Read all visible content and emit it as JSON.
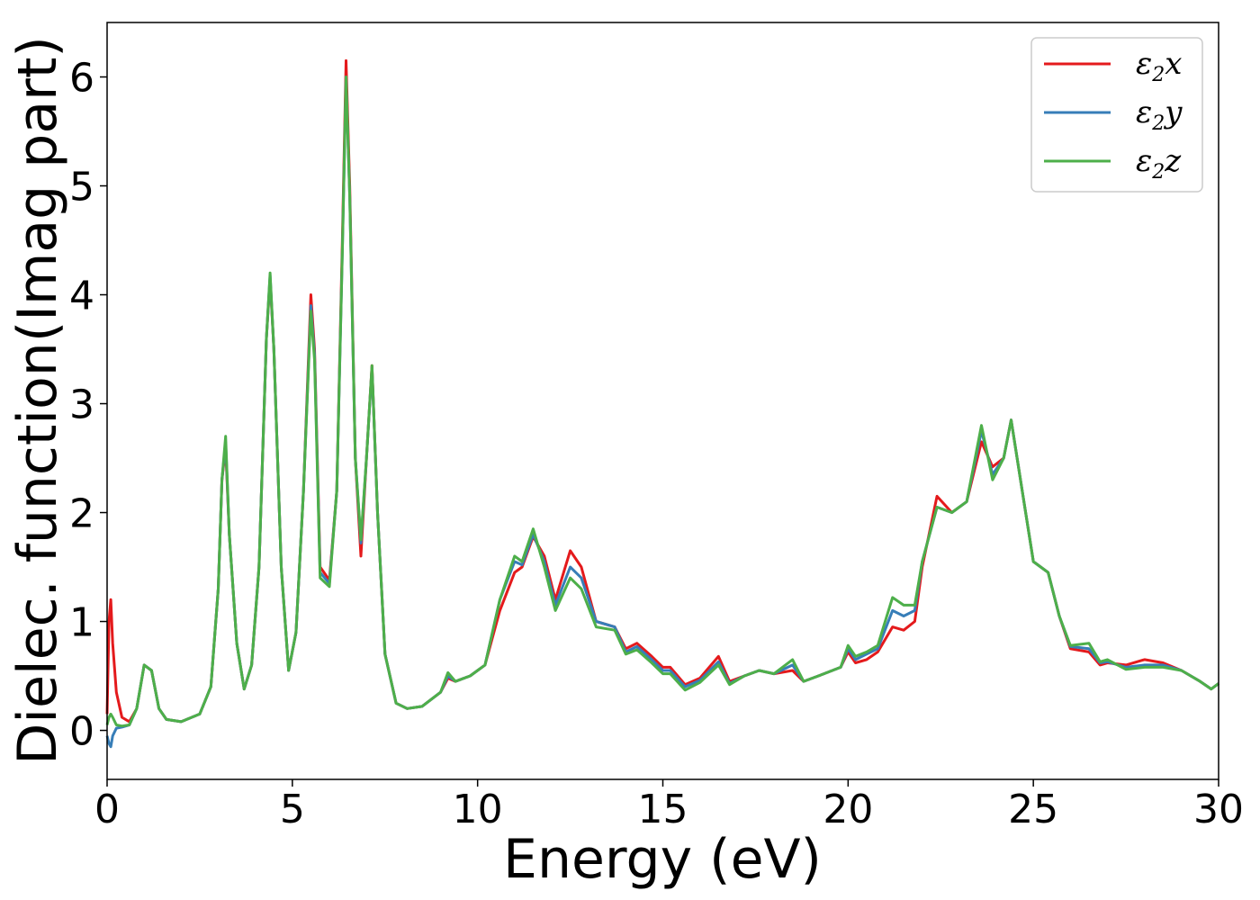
{
  "chart_data": {
    "type": "line",
    "title": "",
    "xlabel": "Energy (eV)",
    "ylabel": "Dielec. function(Imag part)",
    "xlim": [
      0,
      30
    ],
    "ylim": [
      -0.45,
      6.5
    ],
    "xticks": [
      0,
      5,
      10,
      15,
      20,
      25,
      30
    ],
    "xtick_labels": [
      "0",
      "5",
      "10",
      "15",
      "20",
      "25",
      "30"
    ],
    "yticks": [
      0,
      1,
      2,
      3,
      4,
      5,
      6
    ],
    "ytick_labels": [
      "0",
      "1",
      "2",
      "3",
      "4",
      "5",
      "6"
    ],
    "grid": false,
    "legend_position": "top-right",
    "colors": {
      "x": "#e41a1c",
      "y": "#377eb8",
      "z": "#4daf4a"
    },
    "series": [
      {
        "name": "ε2x",
        "legend_symbol": "ε",
        "legend_sub": "2",
        "legend_suffix": "x",
        "color": "#e41a1c",
        "x": [
          0,
          0.05,
          0.1,
          0.15,
          0.25,
          0.4,
          0.6,
          0.8,
          1.0,
          1.2,
          1.4,
          1.6,
          2.0,
          2.5,
          2.8,
          3.0,
          3.1,
          3.2,
          3.3,
          3.5,
          3.7,
          3.9,
          4.1,
          4.3,
          4.4,
          4.5,
          4.7,
          4.9,
          5.1,
          5.3,
          5.5,
          5.6,
          5.75,
          6.0,
          6.2,
          6.35,
          6.45,
          6.55,
          6.7,
          6.85,
          7.0,
          7.15,
          7.3,
          7.5,
          7.8,
          8.1,
          8.5,
          9.0,
          9.2,
          9.4,
          9.8,
          10.2,
          10.6,
          11.0,
          11.2,
          11.5,
          11.8,
          12.1,
          12.5,
          12.8,
          13.2,
          13.7,
          14.0,
          14.3,
          14.7,
          15.0,
          15.2,
          15.6,
          16.0,
          16.5,
          16.8,
          17.2,
          17.6,
          18.0,
          18.5,
          18.8,
          19.2,
          19.8,
          20.0,
          20.2,
          20.5,
          20.8,
          21.2,
          21.5,
          21.8,
          22.0,
          22.4,
          22.8,
          23.2,
          23.6,
          23.9,
          24.2,
          24.4,
          24.7,
          25.0,
          25.4,
          25.7,
          26.0,
          26.5,
          26.8,
          27.0,
          27.5,
          28.0,
          28.5,
          29.0,
          29.5,
          29.8,
          30.0
        ],
        "values": [
          0.15,
          1.0,
          1.2,
          0.8,
          0.35,
          0.12,
          0.08,
          0.2,
          0.6,
          0.55,
          0.2,
          0.1,
          0.08,
          0.15,
          0.4,
          1.3,
          2.3,
          2.6,
          1.8,
          0.8,
          0.38,
          0.6,
          1.5,
          3.6,
          4.15,
          3.5,
          1.5,
          0.55,
          0.9,
          2.2,
          4.0,
          3.5,
          1.5,
          1.38,
          2.2,
          4.5,
          6.15,
          5.0,
          2.5,
          1.6,
          2.5,
          3.35,
          2.0,
          0.7,
          0.25,
          0.2,
          0.22,
          0.35,
          0.48,
          0.45,
          0.5,
          0.6,
          1.1,
          1.45,
          1.5,
          1.78,
          1.6,
          1.2,
          1.65,
          1.5,
          1.0,
          0.95,
          0.75,
          0.8,
          0.68,
          0.58,
          0.58,
          0.42,
          0.48,
          0.68,
          0.45,
          0.5,
          0.55,
          0.52,
          0.55,
          0.45,
          0.5,
          0.58,
          0.72,
          0.62,
          0.65,
          0.72,
          0.95,
          0.92,
          1.0,
          1.5,
          2.15,
          2.0,
          2.1,
          2.65,
          2.42,
          2.5,
          2.85,
          2.2,
          1.55,
          1.45,
          1.05,
          0.75,
          0.72,
          0.6,
          0.62,
          0.6,
          0.65,
          0.62,
          0.55,
          0.45,
          0.38,
          0.43
        ]
      },
      {
        "name": "ε2y",
        "legend_symbol": "ε",
        "legend_sub": "2",
        "legend_suffix": "y",
        "color": "#377eb8",
        "x": [
          0,
          0.05,
          0.1,
          0.15,
          0.25,
          0.4,
          0.6,
          0.8,
          1.0,
          1.2,
          1.4,
          1.6,
          2.0,
          2.5,
          2.8,
          3.0,
          3.1,
          3.2,
          3.3,
          3.5,
          3.7,
          3.9,
          4.1,
          4.3,
          4.4,
          4.5,
          4.7,
          4.9,
          5.1,
          5.3,
          5.5,
          5.6,
          5.75,
          6.0,
          6.2,
          6.35,
          6.45,
          6.55,
          6.7,
          6.85,
          7.0,
          7.15,
          7.3,
          7.5,
          7.8,
          8.1,
          8.5,
          9.0,
          9.2,
          9.4,
          9.8,
          10.2,
          10.6,
          11.0,
          11.2,
          11.5,
          11.8,
          12.1,
          12.5,
          12.8,
          13.2,
          13.7,
          14.0,
          14.3,
          14.7,
          15.0,
          15.2,
          15.6,
          16.0,
          16.5,
          16.8,
          17.2,
          17.6,
          18.0,
          18.5,
          18.8,
          19.2,
          19.8,
          20.0,
          20.2,
          20.5,
          20.8,
          21.2,
          21.5,
          21.8,
          22.0,
          22.4,
          22.8,
          23.2,
          23.6,
          23.9,
          24.2,
          24.4,
          24.7,
          25.0,
          25.4,
          25.7,
          26.0,
          26.5,
          26.8,
          27.0,
          27.5,
          28.0,
          28.5,
          29.0,
          29.5,
          29.8,
          30.0
        ],
        "values": [
          -0.05,
          -0.12,
          -0.15,
          -0.05,
          0.02,
          0.03,
          0.05,
          0.2,
          0.6,
          0.55,
          0.2,
          0.1,
          0.08,
          0.15,
          0.4,
          1.3,
          2.3,
          2.65,
          1.8,
          0.8,
          0.38,
          0.6,
          1.5,
          3.6,
          4.18,
          3.5,
          1.5,
          0.55,
          0.9,
          2.2,
          3.9,
          3.45,
          1.45,
          1.35,
          2.2,
          4.4,
          6.0,
          4.9,
          2.5,
          1.72,
          2.5,
          3.33,
          2.0,
          0.7,
          0.25,
          0.2,
          0.22,
          0.35,
          0.5,
          0.45,
          0.5,
          0.6,
          1.2,
          1.55,
          1.52,
          1.8,
          1.55,
          1.15,
          1.5,
          1.4,
          1.0,
          0.95,
          0.72,
          0.77,
          0.65,
          0.55,
          0.55,
          0.4,
          0.46,
          0.63,
          0.43,
          0.5,
          0.55,
          0.52,
          0.6,
          0.45,
          0.5,
          0.58,
          0.75,
          0.65,
          0.7,
          0.75,
          1.1,
          1.05,
          1.1,
          1.55,
          2.05,
          2.0,
          2.1,
          2.75,
          2.35,
          2.5,
          2.85,
          2.2,
          1.55,
          1.45,
          1.05,
          0.77,
          0.75,
          0.62,
          0.63,
          0.58,
          0.6,
          0.6,
          0.55,
          0.45,
          0.38,
          0.43
        ]
      },
      {
        "name": "ε2z",
        "legend_symbol": "ε",
        "legend_sub": "2",
        "legend_suffix": "z",
        "color": "#4daf4a",
        "x": [
          0,
          0.05,
          0.1,
          0.15,
          0.25,
          0.4,
          0.6,
          0.8,
          1.0,
          1.2,
          1.4,
          1.6,
          2.0,
          2.5,
          2.8,
          3.0,
          3.1,
          3.2,
          3.3,
          3.5,
          3.7,
          3.9,
          4.1,
          4.3,
          4.4,
          4.5,
          4.7,
          4.9,
          5.1,
          5.3,
          5.5,
          5.6,
          5.75,
          6.0,
          6.2,
          6.35,
          6.45,
          6.55,
          6.7,
          6.85,
          7.0,
          7.15,
          7.3,
          7.5,
          7.8,
          8.1,
          8.5,
          9.0,
          9.2,
          9.4,
          9.8,
          10.2,
          10.6,
          11.0,
          11.2,
          11.5,
          11.8,
          12.1,
          12.5,
          12.8,
          13.2,
          13.7,
          14.0,
          14.3,
          14.7,
          15.0,
          15.2,
          15.6,
          16.0,
          16.5,
          16.8,
          17.2,
          17.6,
          18.0,
          18.5,
          18.8,
          19.2,
          19.8,
          20.0,
          20.2,
          20.5,
          20.8,
          21.2,
          21.5,
          21.8,
          22.0,
          22.4,
          22.8,
          23.2,
          23.6,
          23.9,
          24.2,
          24.4,
          24.7,
          25.0,
          25.4,
          25.7,
          26.0,
          26.5,
          26.8,
          27.0,
          27.5,
          28.0,
          28.5,
          29.0,
          29.5,
          29.8,
          30.0
        ],
        "values": [
          0.05,
          0.12,
          0.15,
          0.12,
          0.05,
          0.04,
          0.05,
          0.2,
          0.6,
          0.55,
          0.2,
          0.1,
          0.08,
          0.15,
          0.4,
          1.3,
          2.3,
          2.7,
          1.8,
          0.8,
          0.38,
          0.6,
          1.5,
          3.6,
          4.2,
          3.5,
          1.5,
          0.55,
          0.9,
          2.2,
          3.85,
          3.4,
          1.4,
          1.32,
          2.2,
          4.4,
          6.0,
          4.9,
          2.5,
          1.75,
          2.5,
          3.35,
          2.0,
          0.7,
          0.25,
          0.2,
          0.22,
          0.35,
          0.53,
          0.45,
          0.5,
          0.6,
          1.2,
          1.6,
          1.55,
          1.85,
          1.5,
          1.1,
          1.4,
          1.3,
          0.95,
          0.92,
          0.7,
          0.74,
          0.62,
          0.52,
          0.52,
          0.37,
          0.44,
          0.6,
          0.42,
          0.5,
          0.55,
          0.52,
          0.65,
          0.45,
          0.5,
          0.58,
          0.78,
          0.68,
          0.72,
          0.78,
          1.22,
          1.15,
          1.15,
          1.55,
          2.05,
          2.0,
          2.1,
          2.8,
          2.3,
          2.5,
          2.85,
          2.2,
          1.55,
          1.45,
          1.05,
          0.78,
          0.8,
          0.63,
          0.65,
          0.56,
          0.58,
          0.58,
          0.55,
          0.45,
          0.38,
          0.43
        ]
      }
    ]
  }
}
